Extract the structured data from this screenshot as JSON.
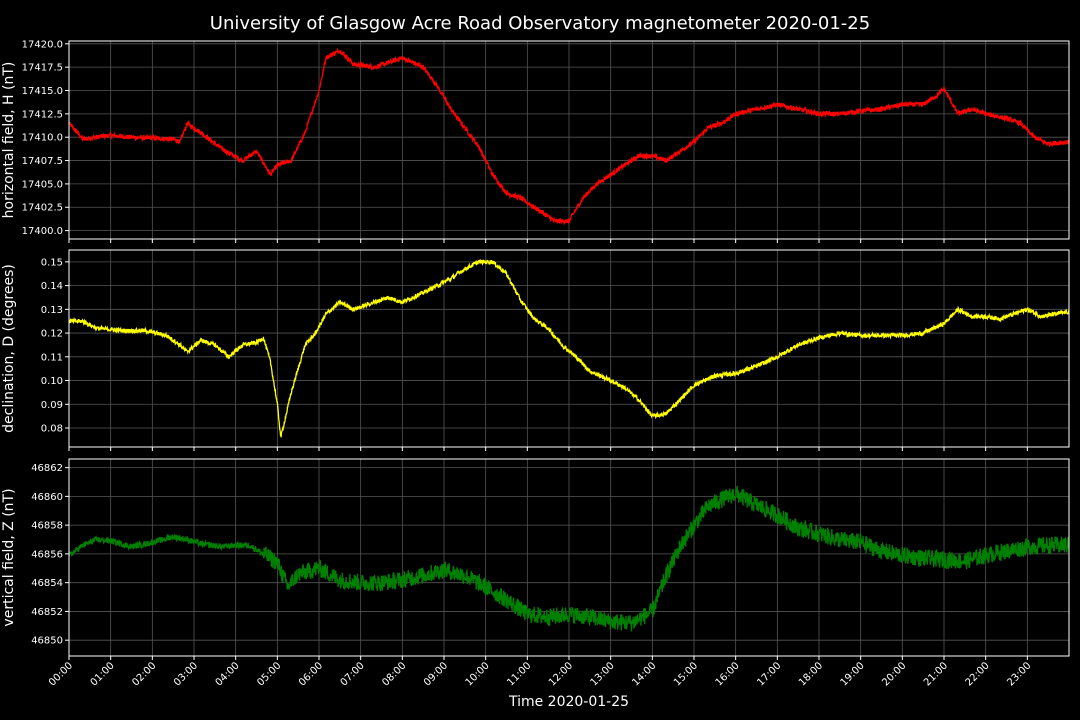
{
  "chart_data": {
    "type": "line",
    "title": "University of Glasgow Acre Road Observatory magnetometer 2020-01-25",
    "xlabel": "Time 2020-01-25",
    "x_ticks": [
      "00:00",
      "01:00",
      "02:00",
      "03:00",
      "04:00",
      "05:00",
      "06:00",
      "07:00",
      "08:00",
      "09:00",
      "10:00",
      "11:00",
      "12:00",
      "13:00",
      "14:00",
      "15:00",
      "16:00",
      "17:00",
      "18:00",
      "19:00",
      "20:00",
      "21:00",
      "22:00",
      "23:00"
    ],
    "xlim": [
      "00:00",
      "24:00"
    ],
    "grid": true,
    "panels": [
      {
        "ylabel": "horizontal field, H (nT)",
        "color": "#ff0000",
        "ylim": [
          17399.1,
          17420.3
        ],
        "y_ticks": [
          "17400.0",
          "17402.5",
          "17405.0",
          "17407.5",
          "17410.0",
          "17412.5",
          "17415.0",
          "17417.5",
          "17420.0"
        ],
        "y_tick_values": [
          17400.0,
          17402.5,
          17405.0,
          17407.5,
          17410.0,
          17412.5,
          17415.0,
          17417.5,
          17420.0
        ],
        "noise": 0.5,
        "points": [
          [
            "00:00",
            17411.5
          ],
          [
            "00:20",
            17409.8
          ],
          [
            "01:00",
            17410.2
          ],
          [
            "01:30",
            17410.0
          ],
          [
            "02:00",
            17409.9
          ],
          [
            "02:30",
            17409.8
          ],
          [
            "02:40",
            17409.5
          ],
          [
            "02:50",
            17411.5
          ],
          [
            "03:10",
            17410.5
          ],
          [
            "03:30",
            17409.3
          ],
          [
            "03:50",
            17408.3
          ],
          [
            "04:10",
            17407.5
          ],
          [
            "04:30",
            17408.5
          ],
          [
            "04:50",
            17406.0
          ],
          [
            "05:00",
            17407.0
          ],
          [
            "05:20",
            17407.5
          ],
          [
            "05:40",
            17410.5
          ],
          [
            "06:00",
            17415.0
          ],
          [
            "06:10",
            17418.5
          ],
          [
            "06:30",
            17419.3
          ],
          [
            "06:50",
            17417.8
          ],
          [
            "07:20",
            17417.5
          ],
          [
            "07:40",
            17418.0
          ],
          [
            "08:00",
            17418.5
          ],
          [
            "08:30",
            17417.5
          ],
          [
            "08:50",
            17415.5
          ],
          [
            "09:10",
            17413.0
          ],
          [
            "09:30",
            17411.0
          ],
          [
            "09:50",
            17409.0
          ],
          [
            "10:10",
            17406.0
          ],
          [
            "10:30",
            17404.0
          ],
          [
            "10:50",
            17403.5
          ],
          [
            "11:20",
            17402.0
          ],
          [
            "11:40",
            17401.0
          ],
          [
            "12:00",
            17401.0
          ],
          [
            "12:20",
            17403.5
          ],
          [
            "12:40",
            17405.0
          ],
          [
            "13:00",
            17406.0
          ],
          [
            "13:20",
            17407.0
          ],
          [
            "13:40",
            17408.0
          ],
          [
            "14:00",
            17408.0
          ],
          [
            "14:20",
            17407.5
          ],
          [
            "14:40",
            17408.5
          ],
          [
            "15:00",
            17409.5
          ],
          [
            "15:20",
            17411.0
          ],
          [
            "15:40",
            17411.5
          ],
          [
            "16:00",
            17412.5
          ],
          [
            "16:30",
            17413.0
          ],
          [
            "17:00",
            17413.5
          ],
          [
            "17:30",
            17413.0
          ],
          [
            "18:00",
            17412.5
          ],
          [
            "18:30",
            17412.5
          ],
          [
            "19:00",
            17412.8
          ],
          [
            "19:30",
            17413.0
          ],
          [
            "20:00",
            17413.5
          ],
          [
            "20:30",
            17413.5
          ],
          [
            "20:50",
            17414.5
          ],
          [
            "21:00",
            17415.2
          ],
          [
            "21:20",
            17412.5
          ],
          [
            "21:40",
            17413.0
          ],
          [
            "22:00",
            17412.5
          ],
          [
            "22:30",
            17412.0
          ],
          [
            "22:50",
            17411.5
          ],
          [
            "23:10",
            17410.0
          ],
          [
            "23:30",
            17409.3
          ],
          [
            "24:00",
            17409.5
          ]
        ]
      },
      {
        "ylabel": "declination, D (degrees)",
        "color": "#ffff00",
        "ylim": [
          0.072,
          0.155
        ],
        "y_ticks": [
          "0.08",
          "0.09",
          "0.10",
          "0.11",
          "0.12",
          "0.13",
          "0.14",
          "0.15"
        ],
        "y_tick_values": [
          0.08,
          0.09,
          0.1,
          0.11,
          0.12,
          0.13,
          0.14,
          0.15
        ],
        "noise": 0.0018,
        "points": [
          [
            "00:00",
            0.125
          ],
          [
            "00:20",
            0.125
          ],
          [
            "00:40",
            0.122
          ],
          [
            "01:20",
            0.121
          ],
          [
            "01:50",
            0.121
          ],
          [
            "02:20",
            0.119
          ],
          [
            "02:40",
            0.115
          ],
          [
            "02:50",
            0.112
          ],
          [
            "03:10",
            0.117
          ],
          [
            "03:30",
            0.115
          ],
          [
            "03:50",
            0.11
          ],
          [
            "04:10",
            0.115
          ],
          [
            "04:30",
            0.116
          ],
          [
            "04:40",
            0.118
          ],
          [
            "04:50",
            0.108
          ],
          [
            "05:00",
            0.09
          ],
          [
            "05:05",
            0.076
          ],
          [
            "05:20",
            0.095
          ],
          [
            "05:40",
            0.115
          ],
          [
            "05:55",
            0.12
          ],
          [
            "06:10",
            0.128
          ],
          [
            "06:30",
            0.133
          ],
          [
            "06:50",
            0.13
          ],
          [
            "07:10",
            0.132
          ],
          [
            "07:40",
            0.135
          ],
          [
            "08:00",
            0.133
          ],
          [
            "08:30",
            0.137
          ],
          [
            "08:50",
            0.14
          ],
          [
            "09:10",
            0.143
          ],
          [
            "09:30",
            0.147
          ],
          [
            "09:50",
            0.15
          ],
          [
            "10:10",
            0.15
          ],
          [
            "10:30",
            0.145
          ],
          [
            "10:50",
            0.134
          ],
          [
            "11:10",
            0.126
          ],
          [
            "11:30",
            0.122
          ],
          [
            "11:50",
            0.115
          ],
          [
            "12:10",
            0.11
          ],
          [
            "12:30",
            0.104
          ],
          [
            "13:00",
            0.1
          ],
          [
            "13:20",
            0.097
          ],
          [
            "13:40",
            0.092
          ],
          [
            "14:00",
            0.085
          ],
          [
            "14:20",
            0.086
          ],
          [
            "14:40",
            0.092
          ],
          [
            "15:00",
            0.098
          ],
          [
            "15:30",
            0.102
          ],
          [
            "16:00",
            0.103
          ],
          [
            "16:30",
            0.106
          ],
          [
            "17:00",
            0.11
          ],
          [
            "17:30",
            0.115
          ],
          [
            "18:00",
            0.118
          ],
          [
            "18:30",
            0.12
          ],
          [
            "19:00",
            0.119
          ],
          [
            "19:30",
            0.119
          ],
          [
            "20:00",
            0.119
          ],
          [
            "20:30",
            0.12
          ],
          [
            "21:00",
            0.124
          ],
          [
            "21:20",
            0.13
          ],
          [
            "21:40",
            0.127
          ],
          [
            "22:00",
            0.127
          ],
          [
            "22:20",
            0.126
          ],
          [
            "22:40",
            0.128
          ],
          [
            "23:00",
            0.13
          ],
          [
            "23:20",
            0.127
          ],
          [
            "24:00",
            0.129
          ]
        ]
      },
      {
        "ylabel": "vertical field, Z (nT)",
        "color": "#008000",
        "ylim": [
          46848.9,
          46862.6
        ],
        "y_ticks": [
          "46850",
          "46852",
          "46854",
          "46856",
          "46858",
          "46860",
          "46862"
        ],
        "y_tick_values": [
          46850,
          46852,
          46854,
          46856,
          46858,
          46860,
          46862
        ],
        "noise": 1.2,
        "points": [
          [
            "00:00",
            46855.9
          ],
          [
            "00:20",
            46856.6
          ],
          [
            "00:40",
            46857.0
          ],
          [
            "01:00",
            46856.9
          ],
          [
            "01:30",
            46856.5
          ],
          [
            "02:00",
            46856.8
          ],
          [
            "02:30",
            46857.2
          ],
          [
            "02:50",
            46857.0
          ],
          [
            "03:10",
            46856.7
          ],
          [
            "03:40",
            46856.5
          ],
          [
            "04:00",
            46856.6
          ],
          [
            "04:20",
            46856.6
          ],
          [
            "04:40",
            46856.0
          ],
          [
            "05:00",
            46855.4
          ],
          [
            "05:15",
            46853.7
          ],
          [
            "05:30",
            46854.6
          ],
          [
            "06:00",
            46855.0
          ],
          [
            "06:30",
            46854.2
          ],
          [
            "07:00",
            46854.0
          ],
          [
            "07:30",
            46854.0
          ],
          [
            "08:00",
            46854.2
          ],
          [
            "08:30",
            46854.5
          ],
          [
            "09:00",
            46854.9
          ],
          [
            "09:30",
            46854.5
          ],
          [
            "10:00",
            46853.7
          ],
          [
            "10:30",
            46852.8
          ],
          [
            "11:00",
            46851.8
          ],
          [
            "11:30",
            46851.6
          ],
          [
            "12:00",
            46851.8
          ],
          [
            "12:30",
            46851.6
          ],
          [
            "13:00",
            46851.3
          ],
          [
            "13:30",
            46851.2
          ],
          [
            "14:00",
            46852.0
          ],
          [
            "14:20",
            46854.5
          ],
          [
            "14:40",
            46856.5
          ],
          [
            "15:00",
            46858.0
          ],
          [
            "15:20",
            46859.3
          ],
          [
            "15:40",
            46859.8
          ],
          [
            "16:00",
            46860.2
          ],
          [
            "16:30",
            46859.4
          ],
          [
            "17:00",
            46858.7
          ],
          [
            "17:30",
            46857.8
          ],
          [
            "18:00",
            46857.4
          ],
          [
            "18:30",
            46857.0
          ],
          [
            "19:00",
            46856.8
          ],
          [
            "19:30",
            46856.2
          ],
          [
            "20:00",
            46855.9
          ],
          [
            "20:30",
            46855.7
          ],
          [
            "21:00",
            46855.6
          ],
          [
            "21:30",
            46855.5
          ],
          [
            "22:00",
            46855.9
          ],
          [
            "22:30",
            46856.2
          ],
          [
            "23:00",
            46856.5
          ],
          [
            "23:30",
            46856.6
          ],
          [
            "24:00",
            46856.6
          ]
        ]
      }
    ]
  }
}
